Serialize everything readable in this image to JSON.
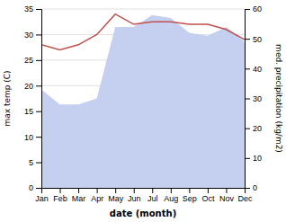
{
  "chart_data": {
    "type": "line",
    "x_label": "date (month)",
    "y_label": "max temp (C)",
    "y2_label": "med. precipitation (kg/m2)",
    "categories": [
      "Jan",
      "Feb",
      "Mar",
      "Apr",
      "May",
      "Jun",
      "Jul",
      "Aug",
      "Sep",
      "Oct",
      "Nov",
      "Dec"
    ],
    "series": [
      {
        "type": "area",
        "axis": "y2",
        "color": "#c5d0f0",
        "values": [
          33,
          28,
          28,
          30,
          54,
          54,
          58,
          57,
          52,
          51,
          54,
          49
        ]
      },
      {
        "type": "line",
        "color": "#c0504d",
        "values": [
          28,
          27,
          28,
          30,
          34,
          32,
          32.5,
          32.5,
          32,
          32,
          31,
          29
        ]
      }
    ],
    "ylim": [
      0,
      35
    ],
    "yticks": [
      0,
      5,
      10,
      15,
      20,
      25,
      30,
      35
    ],
    "y2lim": [
      0,
      60
    ],
    "y2ticks": [
      0,
      10,
      20,
      30,
      40,
      50,
      60
    ],
    "grid": true
  }
}
